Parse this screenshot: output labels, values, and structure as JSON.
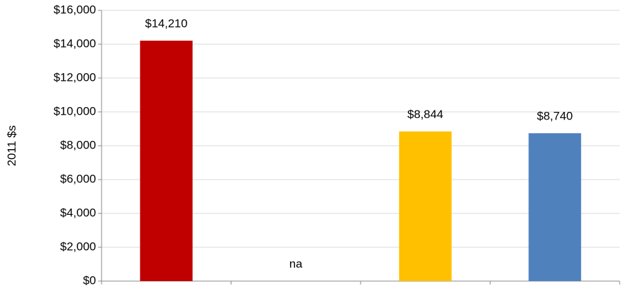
{
  "chart_data": {
    "type": "bar",
    "y_label": "2011 $s",
    "categories": [
      null,
      null,
      null,
      null
    ],
    "values": [
      14210,
      null,
      8844,
      8740
    ],
    "value_labels": [
      "$14,210",
      "na",
      "$8,844",
      "$8,740"
    ],
    "colors": [
      "#c00000",
      null,
      "#ffc000",
      "#4f81bd"
    ],
    "ylim": [
      0,
      16000
    ],
    "yticks": [
      {
        "value": 0,
        "label": "$0"
      },
      {
        "value": 2000,
        "label": "$2,000"
      },
      {
        "value": 4000,
        "label": "$4,000"
      },
      {
        "value": 6000,
        "label": "$6,000"
      },
      {
        "value": 8000,
        "label": "$8,000"
      },
      {
        "value": 10000,
        "label": "$10,000"
      },
      {
        "value": 12000,
        "label": "$12,000"
      },
      {
        "value": 14000,
        "label": "$14,000"
      },
      {
        "value": 16000,
        "label": "$16,000"
      }
    ],
    "grid": true
  }
}
